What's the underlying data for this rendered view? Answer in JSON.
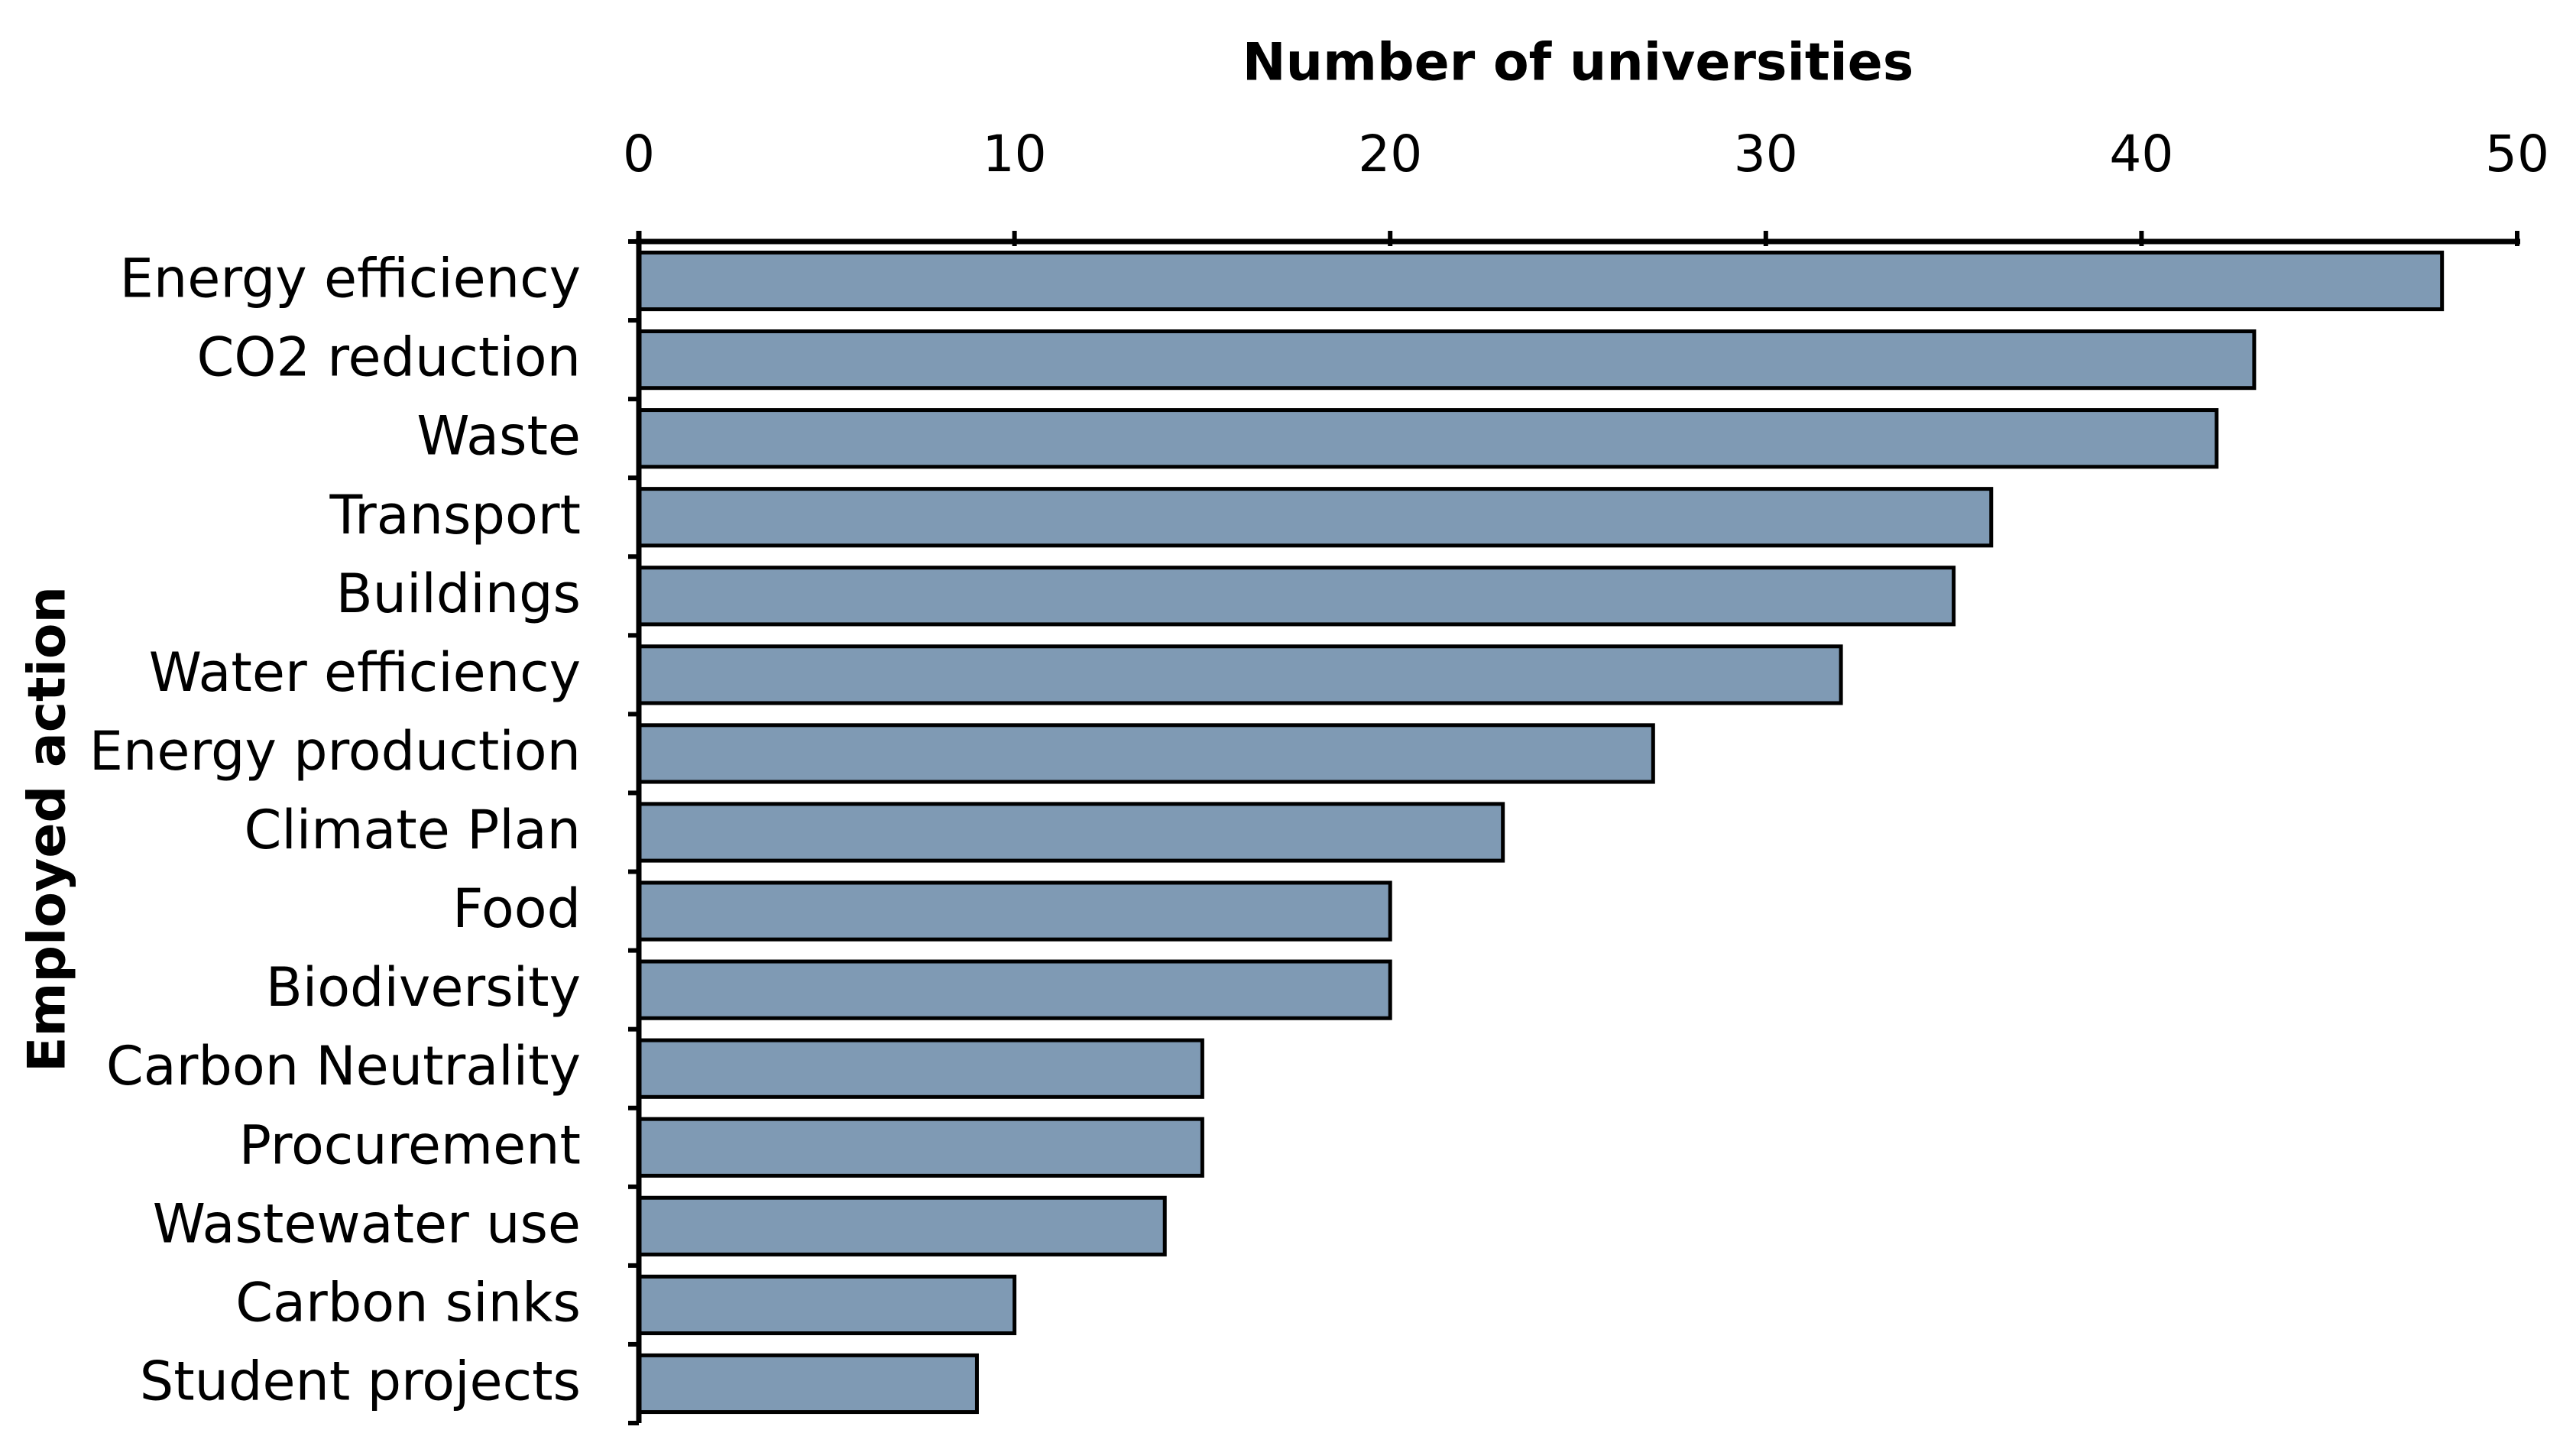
{
  "chart_data": {
    "type": "bar",
    "orientation": "horizontal",
    "x_label": "Number  of universities",
    "y_label": "Employed action",
    "categories": [
      "Energy efficiency",
      "CO2 reduction",
      "Waste",
      "Transport",
      "Buildings",
      "Water efficiency",
      "Energy production",
      "Climate Plan",
      "Food",
      "Biodiversity",
      "Carbon Neutrality",
      "Procurement",
      "Wastewater use",
      "Carbon sinks",
      "Student projects"
    ],
    "values": [
      48,
      43,
      42,
      36,
      35,
      32,
      27,
      23,
      20,
      20,
      15,
      15,
      14,
      10,
      9
    ],
    "color": "#7f9ab4",
    "xlim": [
      0,
      50
    ],
    "xticks": [
      0,
      10,
      20,
      30,
      40,
      50
    ],
    "grid": false
  }
}
